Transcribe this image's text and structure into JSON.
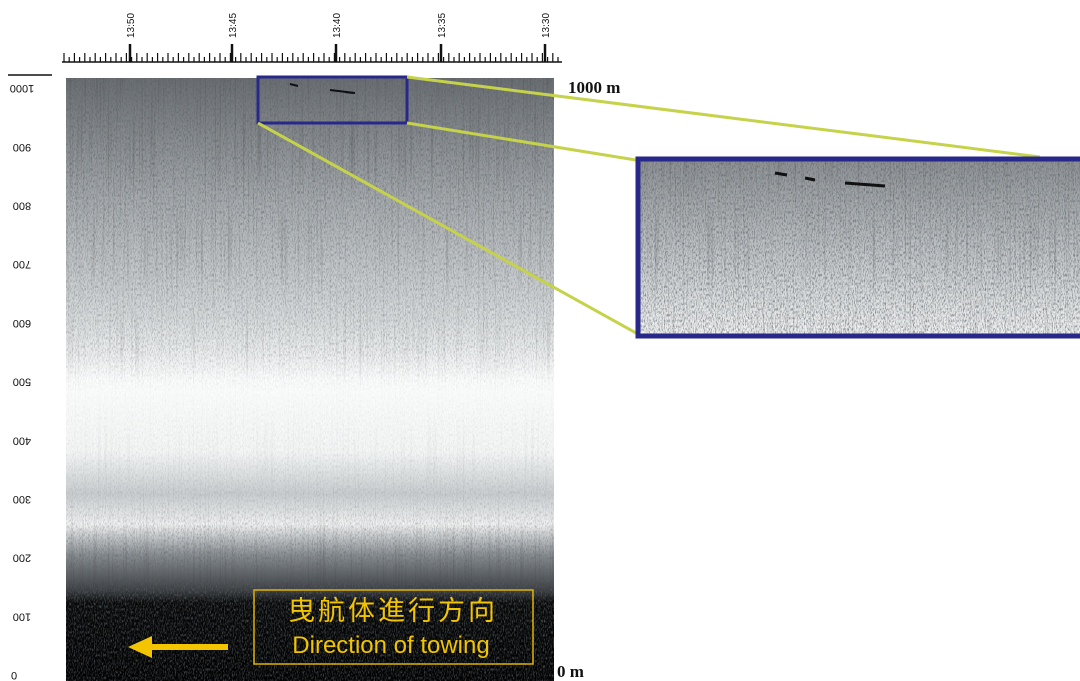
{
  "time_axis": {
    "labels": [
      "13:50",
      "13:45",
      "13:40",
      "13:35",
      "13:30"
    ]
  },
  "depth_axis": {
    "labels": [
      "1000",
      "900",
      "800",
      "700",
      "600",
      "500",
      "400",
      "300",
      "200",
      "100",
      "0"
    ]
  },
  "annotations": {
    "top_depth": "1000 m",
    "bottom_depth": "0 m",
    "direction_ja": "曳航体進行方向",
    "direction_en": "Direction of towing"
  }
}
